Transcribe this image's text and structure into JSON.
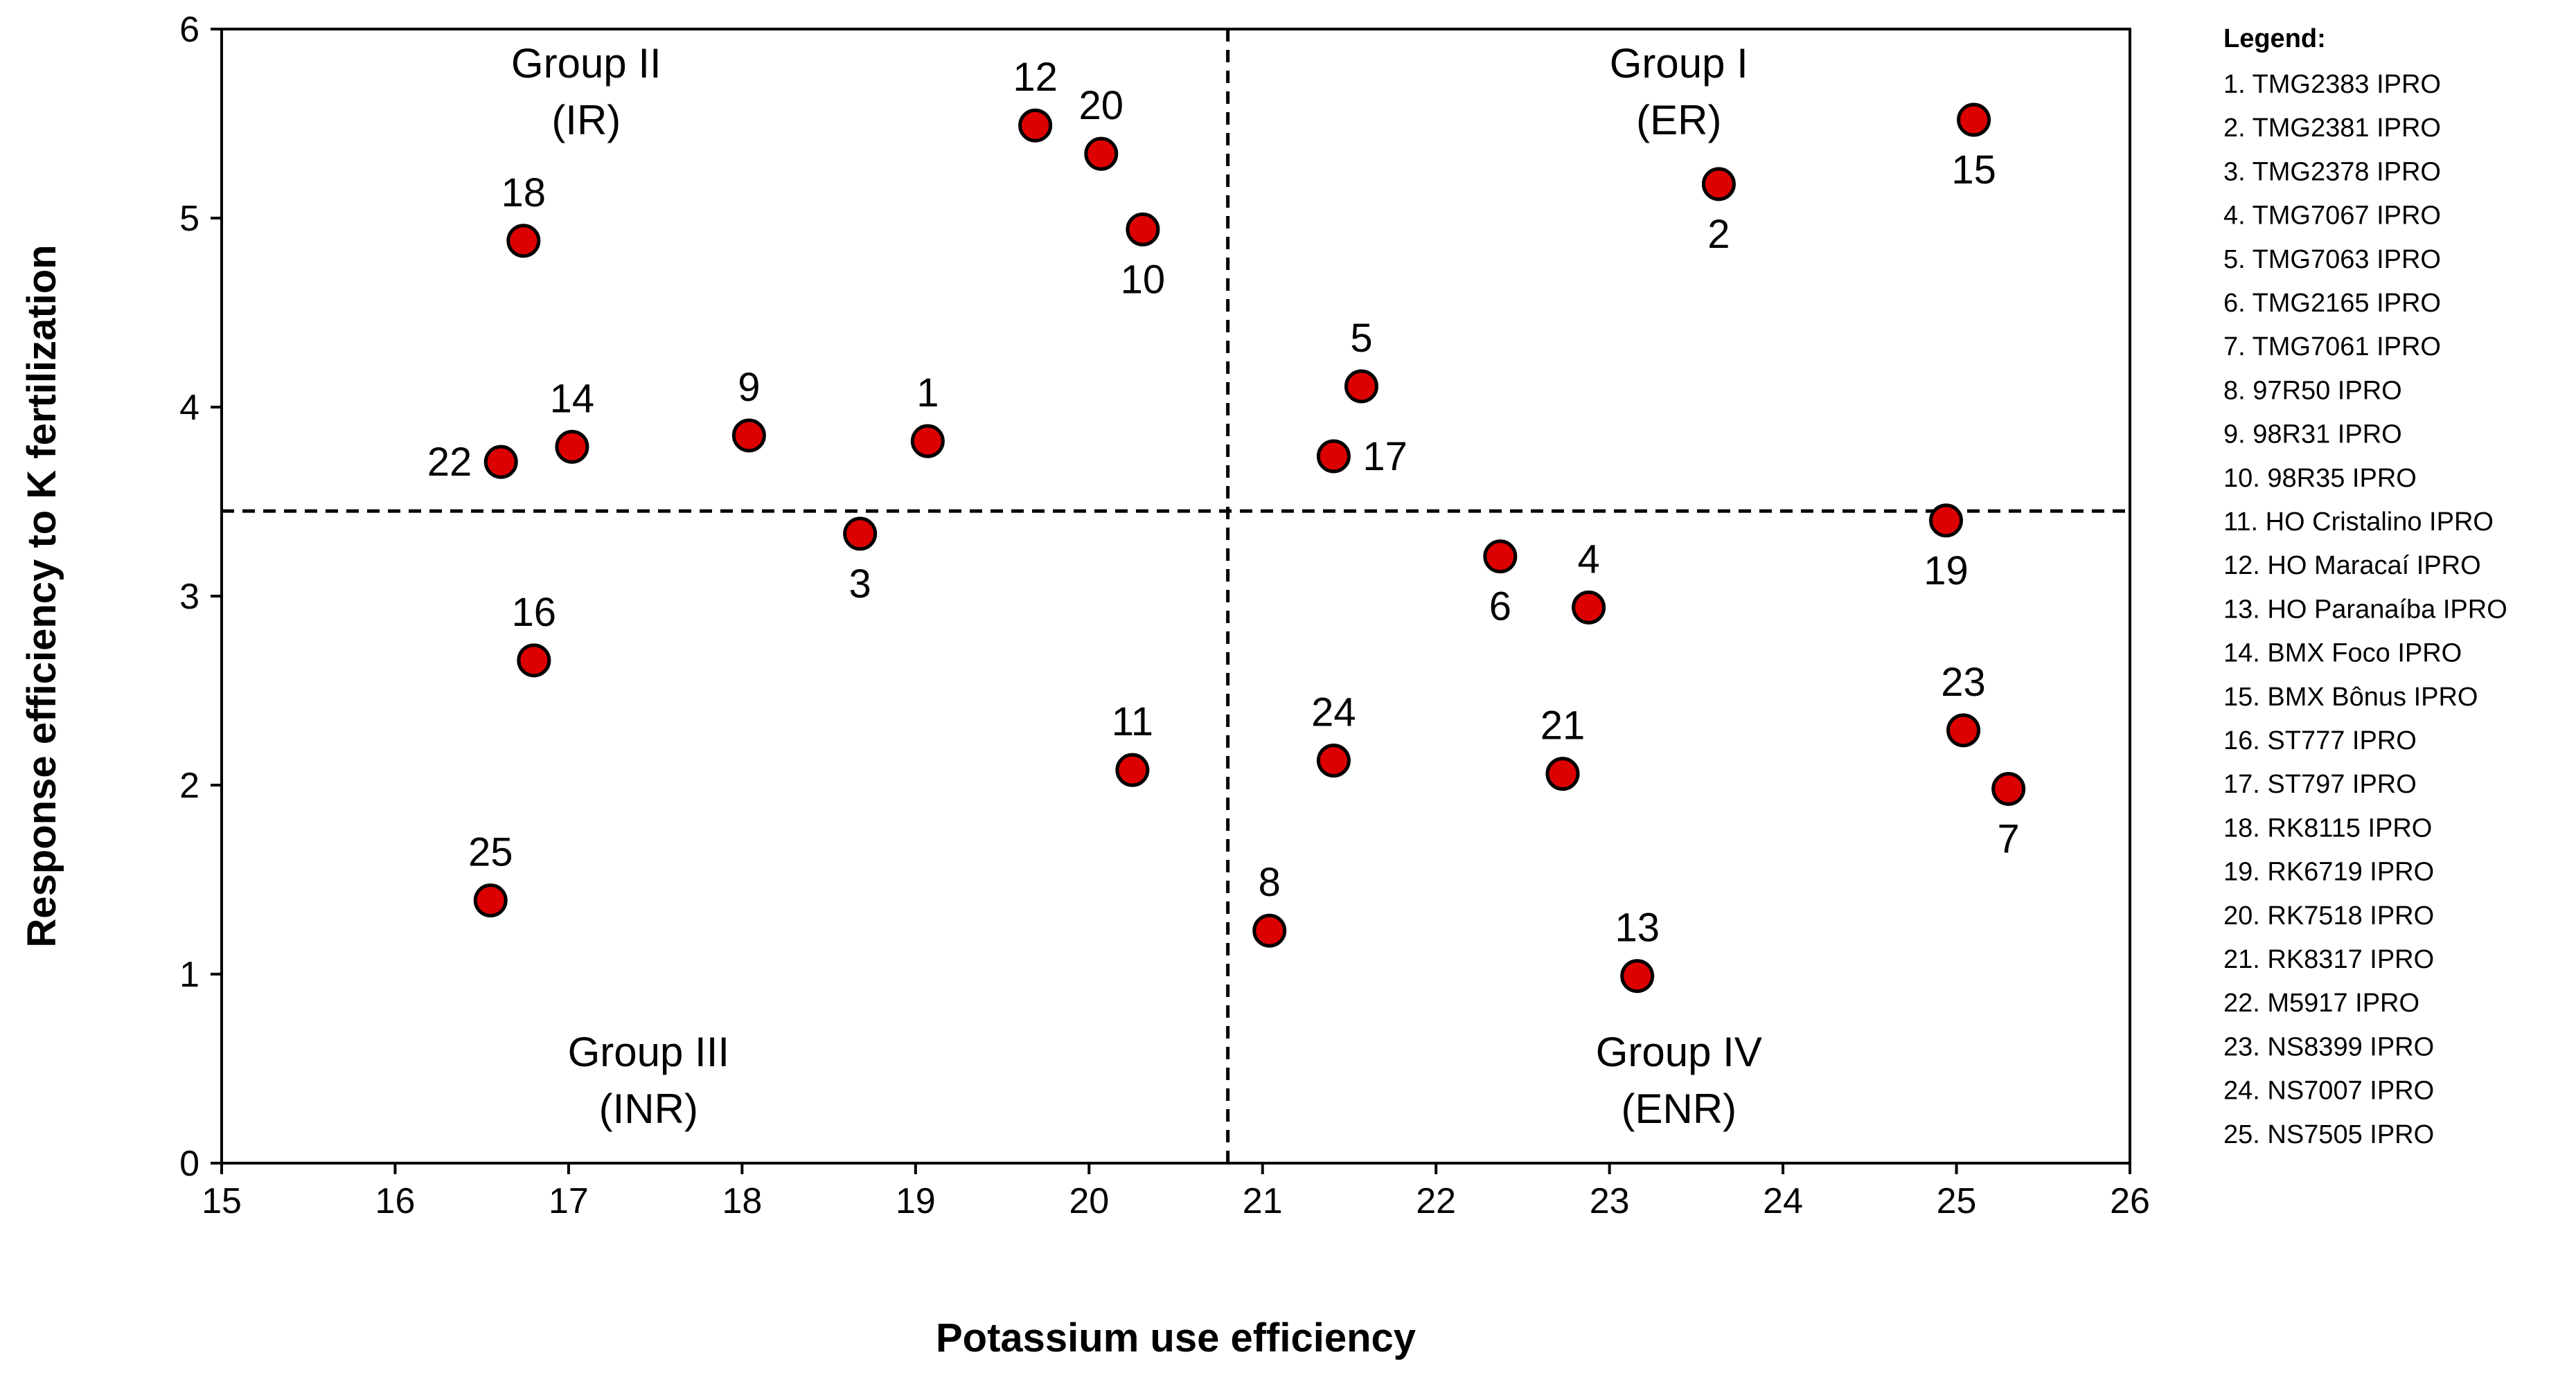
{
  "colors": {
    "point_fill": "#dd0000",
    "point_stroke": "#000000",
    "axis": "#000000"
  },
  "chart_data": {
    "type": "scatter",
    "title": "",
    "xlabel": "Potassium use efficiency",
    "ylabel": "Response efficiency to K fertilization",
    "xlim": [
      15,
      26
    ],
    "ylim": [
      0,
      6
    ],
    "x_ticks": [
      "15",
      "16",
      "17",
      "18",
      "19",
      "20",
      "21",
      "22",
      "23",
      "24",
      "25",
      "26"
    ],
    "y_ticks": [
      "0",
      "1",
      "2",
      "3",
      "4",
      "5",
      "6"
    ],
    "divider_x": 20.8,
    "divider_y": 3.45,
    "groups": [
      {
        "name": "Group I",
        "code": "(ER)",
        "quadrant": "top-right"
      },
      {
        "name": "Group II",
        "code": "(IR)",
        "quadrant": "top-left"
      },
      {
        "name": "Group III",
        "code": "(INR)",
        "quadrant": "bottom-left"
      },
      {
        "name": "Group IV",
        "code": "(ENR)",
        "quadrant": "bottom-right"
      }
    ],
    "points": [
      {
        "label": "1",
        "x": 19.07,
        "y": 3.82,
        "label_pos": "above"
      },
      {
        "label": "2",
        "x": 23.63,
        "y": 5.18,
        "label_pos": "below"
      },
      {
        "label": "3",
        "x": 18.68,
        "y": 3.33,
        "label_pos": "below"
      },
      {
        "label": "4",
        "x": 22.88,
        "y": 2.94,
        "label_pos": "above"
      },
      {
        "label": "5",
        "x": 21.57,
        "y": 4.11,
        "label_pos": "above"
      },
      {
        "label": "6",
        "x": 22.37,
        "y": 3.21,
        "label_pos": "below"
      },
      {
        "label": "7",
        "x": 25.3,
        "y": 1.98,
        "label_pos": "below"
      },
      {
        "label": "8",
        "x": 21.04,
        "y": 1.23,
        "label_pos": "above"
      },
      {
        "label": "9",
        "x": 18.04,
        "y": 3.85,
        "label_pos": "above"
      },
      {
        "label": "10",
        "x": 20.31,
        "y": 4.94,
        "label_pos": "below"
      },
      {
        "label": "11",
        "x": 20.25,
        "y": 2.08,
        "label_pos": "above"
      },
      {
        "label": "12",
        "x": 19.69,
        "y": 5.49,
        "label_pos": "above"
      },
      {
        "label": "13",
        "x": 23.16,
        "y": 0.99,
        "label_pos": "above"
      },
      {
        "label": "14",
        "x": 17.02,
        "y": 3.79,
        "label_pos": "above"
      },
      {
        "label": "15",
        "x": 25.1,
        "y": 5.52,
        "label_pos": "below"
      },
      {
        "label": "16",
        "x": 16.8,
        "y": 2.66,
        "label_pos": "above"
      },
      {
        "label": "17",
        "x": 21.41,
        "y": 3.74,
        "label_pos": "right"
      },
      {
        "label": "18",
        "x": 16.74,
        "y": 4.88,
        "label_pos": "above"
      },
      {
        "label": "19",
        "x": 24.94,
        "y": 3.4,
        "label_pos": "below"
      },
      {
        "label": "20",
        "x": 20.07,
        "y": 5.34,
        "label_pos": "above"
      },
      {
        "label": "21",
        "x": 22.73,
        "y": 2.06,
        "label_pos": "above"
      },
      {
        "label": "22",
        "x": 16.61,
        "y": 3.71,
        "label_pos": "left"
      },
      {
        "label": "23",
        "x": 25.04,
        "y": 2.29,
        "label_pos": "above"
      },
      {
        "label": "24",
        "x": 21.41,
        "y": 2.13,
        "label_pos": "above"
      },
      {
        "label": "25",
        "x": 16.55,
        "y": 1.39,
        "label_pos": "above"
      }
    ],
    "legend": {
      "title": "Legend:",
      "items": [
        "1. TMG2383 IPRO",
        "2. TMG2381 IPRO",
        "3. TMG2378 IPRO",
        "4. TMG7067 IPRO",
        "5. TMG7063 IPRO",
        "6. TMG2165 IPRO",
        "7. TMG7061 IPRO",
        "8. 97R50 IPRO",
        "9. 98R31 IPRO",
        "10. 98R35 IPRO",
        "11. HO Cristalino IPRO",
        "12. HO Maracaí IPRO",
        "13. HO Paranaíba IPRO",
        "14. BMX Foco IPRO",
        "15. BMX Bônus IPRO",
        "16. ST777 IPRO",
        "17. ST797 IPRO",
        "18. RK8115 IPRO",
        "19. RK6719 IPRO",
        "20. RK7518 IPRO",
        "21. RK8317 IPRO",
        "22. M5917 IPRO",
        "23. NS8399 IPRO",
        "24. NS7007 IPRO",
        "25. NS7505 IPRO"
      ]
    }
  }
}
